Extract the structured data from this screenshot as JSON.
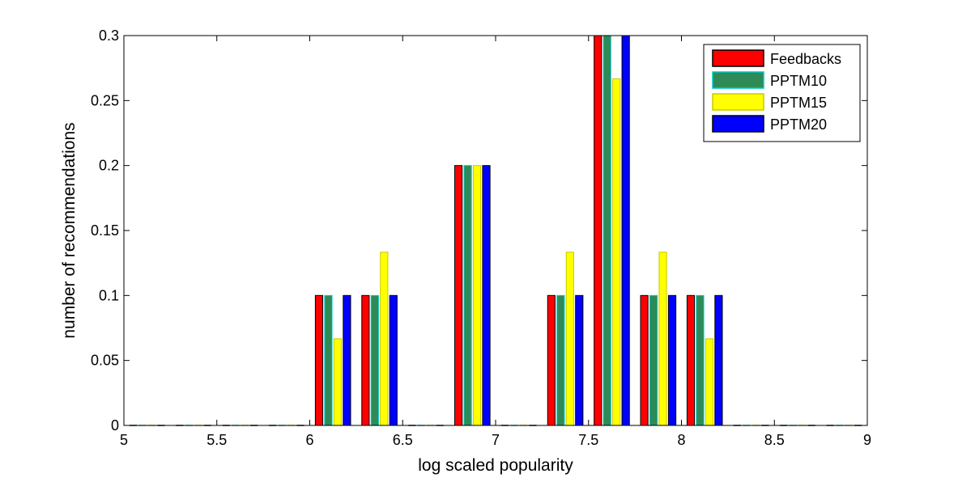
{
  "chart_data": {
    "type": "bar",
    "title": "",
    "xlabel": "log scaled popularity",
    "ylabel": "number of recommendations",
    "xlim": [
      5,
      9
    ],
    "ylim": [
      0,
      0.3
    ],
    "xticks": [
      5,
      5.5,
      6,
      6.5,
      7,
      7.5,
      8,
      8.5,
      9
    ],
    "xtick_labels": [
      "5",
      "5.5",
      "6",
      "6.5",
      "7",
      "7.5",
      "8",
      "8.5",
      "9"
    ],
    "yticks": [
      0,
      0.05,
      0.1,
      0.15,
      0.2,
      0.25,
      0.3
    ],
    "ytick_labels": [
      "0",
      "0.05",
      "0.1",
      "0.15",
      "0.2",
      "0.25",
      "0.3"
    ],
    "grid": false,
    "legend_position": "top-right",
    "categories": [
      5.125,
      5.375,
      5.625,
      5.875,
      6.125,
      6.375,
      6.625,
      6.875,
      7.125,
      7.375,
      7.625,
      7.875,
      8.125,
      8.375,
      8.625,
      8.875
    ],
    "series": [
      {
        "name": "Feedbacks",
        "color": "#ff0000",
        "edge": "#000000",
        "values": [
          0,
          0,
          0,
          0,
          0.1,
          0.1,
          0,
          0.2,
          0,
          0.1,
          0.3,
          0.1,
          0.1,
          0,
          0,
          0
        ]
      },
      {
        "name": "PPTM10",
        "color": "#2e8b57",
        "edge": "#00c8c8",
        "values": [
          0,
          0,
          0,
          0,
          0.1,
          0.1,
          0,
          0.2,
          0,
          0.1,
          0.3,
          0.1,
          0.1,
          0,
          0,
          0
        ]
      },
      {
        "name": "PPTM15",
        "color": "#ffff00",
        "edge": "#c8c800",
        "values": [
          0,
          0,
          0,
          0,
          0.0667,
          0.1333,
          0,
          0.2,
          0,
          0.1333,
          0.2667,
          0.1333,
          0.0667,
          0,
          0,
          0
        ]
      },
      {
        "name": "PPTM20",
        "color": "#0000ff",
        "edge": "#000000",
        "values": [
          0,
          0,
          0,
          0,
          0.1,
          0.1,
          0,
          0.2,
          0,
          0.1,
          0.3,
          0.1,
          0.1,
          0,
          0,
          0
        ]
      }
    ]
  }
}
